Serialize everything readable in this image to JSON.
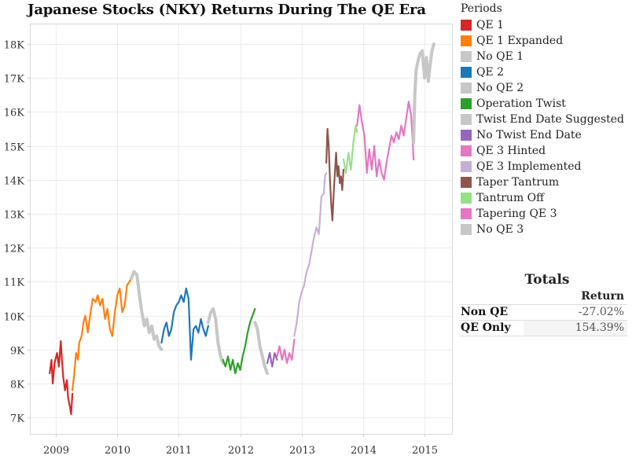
{
  "title": "Japanese Stocks (NKY) Returns During The QE Era",
  "chart_data": {
    "type": "line",
    "title": "Japanese Stocks (NKY) Returns During The QE Era",
    "xlabel": "",
    "ylabel": "",
    "x_ticks": [
      "2009",
      "2010",
      "2011",
      "2012",
      "2013",
      "2014",
      "2015"
    ],
    "x_tick_values": [
      2009,
      2010,
      2011,
      2012,
      2013,
      2014,
      2015
    ],
    "y_ticks": [
      "7K",
      "8K",
      "9K",
      "10K",
      "11K",
      "12K",
      "13K",
      "14K",
      "15K",
      "16K",
      "17K",
      "18K"
    ],
    "y_tick_values": [
      7000,
      8000,
      9000,
      10000,
      11000,
      12000,
      13000,
      14000,
      15000,
      16000,
      17000,
      18000
    ],
    "xlim": [
      2008.6,
      2015.43
    ],
    "ylim": [
      6500,
      18600
    ],
    "grid": true,
    "legend_title": "Periods",
    "legend_position": "right",
    "series": [
      {
        "name": "QE 1",
        "color": "#d62728",
        "points": [
          [
            2008.9,
            8300
          ],
          [
            2008.93,
            8700
          ],
          [
            2008.95,
            8000
          ],
          [
            2008.98,
            8600
          ],
          [
            2009.02,
            8900
          ],
          [
            2009.05,
            8500
          ],
          [
            2009.08,
            9250
          ],
          [
            2009.1,
            8700
          ],
          [
            2009.12,
            8200
          ],
          [
            2009.15,
            7800
          ],
          [
            2009.18,
            8100
          ],
          [
            2009.2,
            7600
          ],
          [
            2009.23,
            7300
          ],
          [
            2009.25,
            7100
          ],
          [
            2009.27,
            7700
          ]
        ]
      },
      {
        "name": "QE 1 Expanded",
        "color": "#ff7f0e",
        "points": [
          [
            2009.27,
            7800
          ],
          [
            2009.3,
            8300
          ],
          [
            2009.33,
            8900
          ],
          [
            2009.36,
            8700
          ],
          [
            2009.38,
            9200
          ],
          [
            2009.42,
            9400
          ],
          [
            2009.45,
            9800
          ],
          [
            2009.48,
            10000
          ],
          [
            2009.52,
            9500
          ],
          [
            2009.55,
            9900
          ],
          [
            2009.6,
            10500
          ],
          [
            2009.65,
            10400
          ],
          [
            2009.68,
            10600
          ],
          [
            2009.72,
            10300
          ],
          [
            2009.76,
            10500
          ],
          [
            2009.8,
            9900
          ],
          [
            2009.84,
            10200
          ],
          [
            2009.88,
            9600
          ],
          [
            2009.92,
            9400
          ],
          [
            2009.96,
            10100
          ],
          [
            2010.0,
            10600
          ],
          [
            2010.04,
            10800
          ],
          [
            2010.08,
            10100
          ],
          [
            2010.12,
            10300
          ],
          [
            2010.16,
            10900
          ],
          [
            2010.2,
            11000
          ],
          [
            2010.23,
            11100
          ]
        ]
      },
      {
        "name": "No QE 1",
        "color": "#c7c7c7",
        "points": [
          [
            2010.23,
            11100
          ],
          [
            2010.27,
            11300
          ],
          [
            2010.32,
            11200
          ],
          [
            2010.36,
            10600
          ],
          [
            2010.4,
            10100
          ],
          [
            2010.44,
            9700
          ],
          [
            2010.48,
            9900
          ],
          [
            2010.52,
            9500
          ],
          [
            2010.56,
            9700
          ],
          [
            2010.6,
            9300
          ],
          [
            2010.64,
            9400
          ],
          [
            2010.68,
            9100
          ],
          [
            2010.72,
            9000
          ]
        ]
      },
      {
        "name": "QE 2",
        "color": "#1f77b4",
        "points": [
          [
            2010.72,
            9200
          ],
          [
            2010.76,
            9600
          ],
          [
            2010.8,
            9800
          ],
          [
            2010.84,
            9400
          ],
          [
            2010.88,
            9600
          ],
          [
            2010.92,
            10100
          ],
          [
            2010.96,
            10300
          ],
          [
            2011.0,
            10400
          ],
          [
            2011.04,
            10600
          ],
          [
            2011.08,
            10400
          ],
          [
            2011.12,
            10800
          ],
          [
            2011.16,
            10500
          ],
          [
            2011.2,
            8700
          ],
          [
            2011.24,
            9600
          ],
          [
            2011.28,
            9700
          ],
          [
            2011.32,
            9500
          ],
          [
            2011.36,
            9900
          ],
          [
            2011.4,
            9600
          ],
          [
            2011.44,
            9400
          ],
          [
            2011.48,
            9700
          ]
        ]
      },
      {
        "name": "No QE 2",
        "color": "#c7c7c7",
        "points": [
          [
            2011.48,
            9800
          ],
          [
            2011.52,
            10100
          ],
          [
            2011.56,
            10200
          ],
          [
            2011.6,
            9900
          ],
          [
            2011.64,
            9200
          ],
          [
            2011.68,
            8800
          ],
          [
            2011.72,
            8600
          ]
        ]
      },
      {
        "name": "Operation Twist",
        "color": "#2ca02c",
        "points": [
          [
            2011.72,
            8700
          ],
          [
            2011.76,
            8500
          ],
          [
            2011.8,
            8800
          ],
          [
            2011.84,
            8400
          ],
          [
            2011.88,
            8700
          ],
          [
            2011.92,
            8300
          ],
          [
            2011.96,
            8600
          ],
          [
            2012.0,
            8400
          ],
          [
            2012.04,
            8800
          ],
          [
            2012.08,
            9100
          ],
          [
            2012.12,
            9500
          ],
          [
            2012.16,
            9800
          ],
          [
            2012.2,
            10000
          ],
          [
            2012.24,
            10200
          ]
        ]
      },
      {
        "name": "Twist End Date Suggested",
        "color": "#c7c7c7",
        "points": [
          [
            2012.24,
            9800
          ],
          [
            2012.28,
            9600
          ],
          [
            2012.32,
            9100
          ],
          [
            2012.36,
            8800
          ],
          [
            2012.4,
            8500
          ],
          [
            2012.44,
            8300
          ]
        ]
      },
      {
        "name": "No Twist End Date",
        "color": "#9467bd",
        "points": [
          [
            2012.44,
            8600
          ],
          [
            2012.48,
            8900
          ],
          [
            2012.52,
            8500
          ],
          [
            2012.56,
            8900
          ],
          [
            2012.6,
            8700
          ]
        ]
      },
      {
        "name": "QE 3 Hinted",
        "color": "#e377c2",
        "points": [
          [
            2012.6,
            8800
          ],
          [
            2012.64,
            9100
          ],
          [
            2012.68,
            8700
          ],
          [
            2012.72,
            9000
          ],
          [
            2012.76,
            8600
          ],
          [
            2012.8,
            8900
          ],
          [
            2012.84,
            8700
          ],
          [
            2012.88,
            9300
          ]
        ]
      },
      {
        "name": "QE 3 Implemented",
        "color": "#c5b0d5",
        "points": [
          [
            2012.88,
            9400
          ],
          [
            2012.92,
            9800
          ],
          [
            2012.96,
            10400
          ],
          [
            2013.0,
            10700
          ],
          [
            2013.04,
            10900
          ],
          [
            2013.08,
            11300
          ],
          [
            2013.12,
            11500
          ],
          [
            2013.16,
            11900
          ],
          [
            2013.2,
            12300
          ],
          [
            2013.24,
            12600
          ],
          [
            2013.28,
            12400
          ],
          [
            2013.32,
            13500
          ],
          [
            2013.36,
            13600
          ],
          [
            2013.38,
            14100
          ],
          [
            2013.4,
            14200
          ]
        ]
      },
      {
        "name": "Taper Tantrum",
        "color": "#8c564b",
        "points": [
          [
            2013.4,
            14500
          ],
          [
            2013.42,
            15500
          ],
          [
            2013.44,
            15000
          ],
          [
            2013.46,
            14000
          ],
          [
            2013.48,
            13300
          ],
          [
            2013.5,
            12800
          ],
          [
            2013.52,
            13600
          ],
          [
            2013.54,
            14200
          ],
          [
            2013.56,
            14800
          ],
          [
            2013.58,
            14100
          ],
          [
            2013.6,
            14400
          ],
          [
            2013.62,
            13900
          ],
          [
            2013.64,
            14100
          ],
          [
            2013.66,
            13700
          ],
          [
            2013.68,
            14300
          ]
        ]
      },
      {
        "name": "Tantrum Off",
        "color": "#98df8a",
        "points": [
          [
            2013.68,
            14600
          ],
          [
            2013.72,
            14200
          ],
          [
            2013.76,
            14800
          ],
          [
            2013.8,
            14300
          ],
          [
            2013.84,
            15100
          ],
          [
            2013.88,
            15600
          ],
          [
            2013.9,
            15400
          ]
        ]
      },
      {
        "name": "Tapering QE 3",
        "color": "#e377c2",
        "points": [
          [
            2013.9,
            15600
          ],
          [
            2013.94,
            16200
          ],
          [
            2013.98,
            15700
          ],
          [
            2014.02,
            15300
          ],
          [
            2014.06,
            14200
          ],
          [
            2014.1,
            14900
          ],
          [
            2014.14,
            14300
          ],
          [
            2014.18,
            15000
          ],
          [
            2014.22,
            14100
          ],
          [
            2014.26,
            14600
          ],
          [
            2014.3,
            14200
          ],
          [
            2014.34,
            14000
          ],
          [
            2014.38,
            14500
          ],
          [
            2014.42,
            14900
          ],
          [
            2014.46,
            15300
          ],
          [
            2014.5,
            15100
          ],
          [
            2014.54,
            15400
          ],
          [
            2014.58,
            15200
          ],
          [
            2014.62,
            15600
          ],
          [
            2014.66,
            15300
          ],
          [
            2014.7,
            15800
          ],
          [
            2014.74,
            16300
          ],
          [
            2014.78,
            15900
          ],
          [
            2014.8,
            15300
          ],
          [
            2014.82,
            14600
          ]
        ]
      },
      {
        "name": "No QE 3",
        "color": "#c7c7c7",
        "points": [
          [
            2014.82,
            15100
          ],
          [
            2014.84,
            16500
          ],
          [
            2014.86,
            17200
          ],
          [
            2014.88,
            17400
          ],
          [
            2014.92,
            17700
          ],
          [
            2014.96,
            17800
          ],
          [
            2015.0,
            17000
          ],
          [
            2015.03,
            17600
          ],
          [
            2015.06,
            16900
          ],
          [
            2015.09,
            17400
          ],
          [
            2015.12,
            17800
          ],
          [
            2015.15,
            18000
          ]
        ]
      }
    ]
  },
  "legend": {
    "title": "Periods",
    "items": [
      {
        "label": "QE 1",
        "color": "#d62728"
      },
      {
        "label": "QE 1 Expanded",
        "color": "#ff7f0e"
      },
      {
        "label": "No QE 1",
        "color": "#c7c7c7"
      },
      {
        "label": "QE 2",
        "color": "#1f77b4"
      },
      {
        "label": "No QE 2",
        "color": "#c7c7c7"
      },
      {
        "label": "Operation Twist",
        "color": "#2ca02c"
      },
      {
        "label": "Twist End Date Suggested",
        "color": "#c7c7c7"
      },
      {
        "label": "No Twist End Date",
        "color": "#9467bd"
      },
      {
        "label": "QE 3 Hinted",
        "color": "#e377c2"
      },
      {
        "label": "QE 3 Implemented",
        "color": "#c5b0d5"
      },
      {
        "label": "Taper Tantrum",
        "color": "#8c564b"
      },
      {
        "label": "Tantrum Off",
        "color": "#98df8a"
      },
      {
        "label": "Tapering QE 3",
        "color": "#e377c2"
      },
      {
        "label": "No QE 3",
        "color": "#c7c7c7"
      }
    ]
  },
  "totals": {
    "title": "Totals",
    "column_header": "Return",
    "rows": [
      {
        "label": "Non QE",
        "value": "-27.02%"
      },
      {
        "label": "QE Only",
        "value": "154.39%"
      }
    ]
  }
}
